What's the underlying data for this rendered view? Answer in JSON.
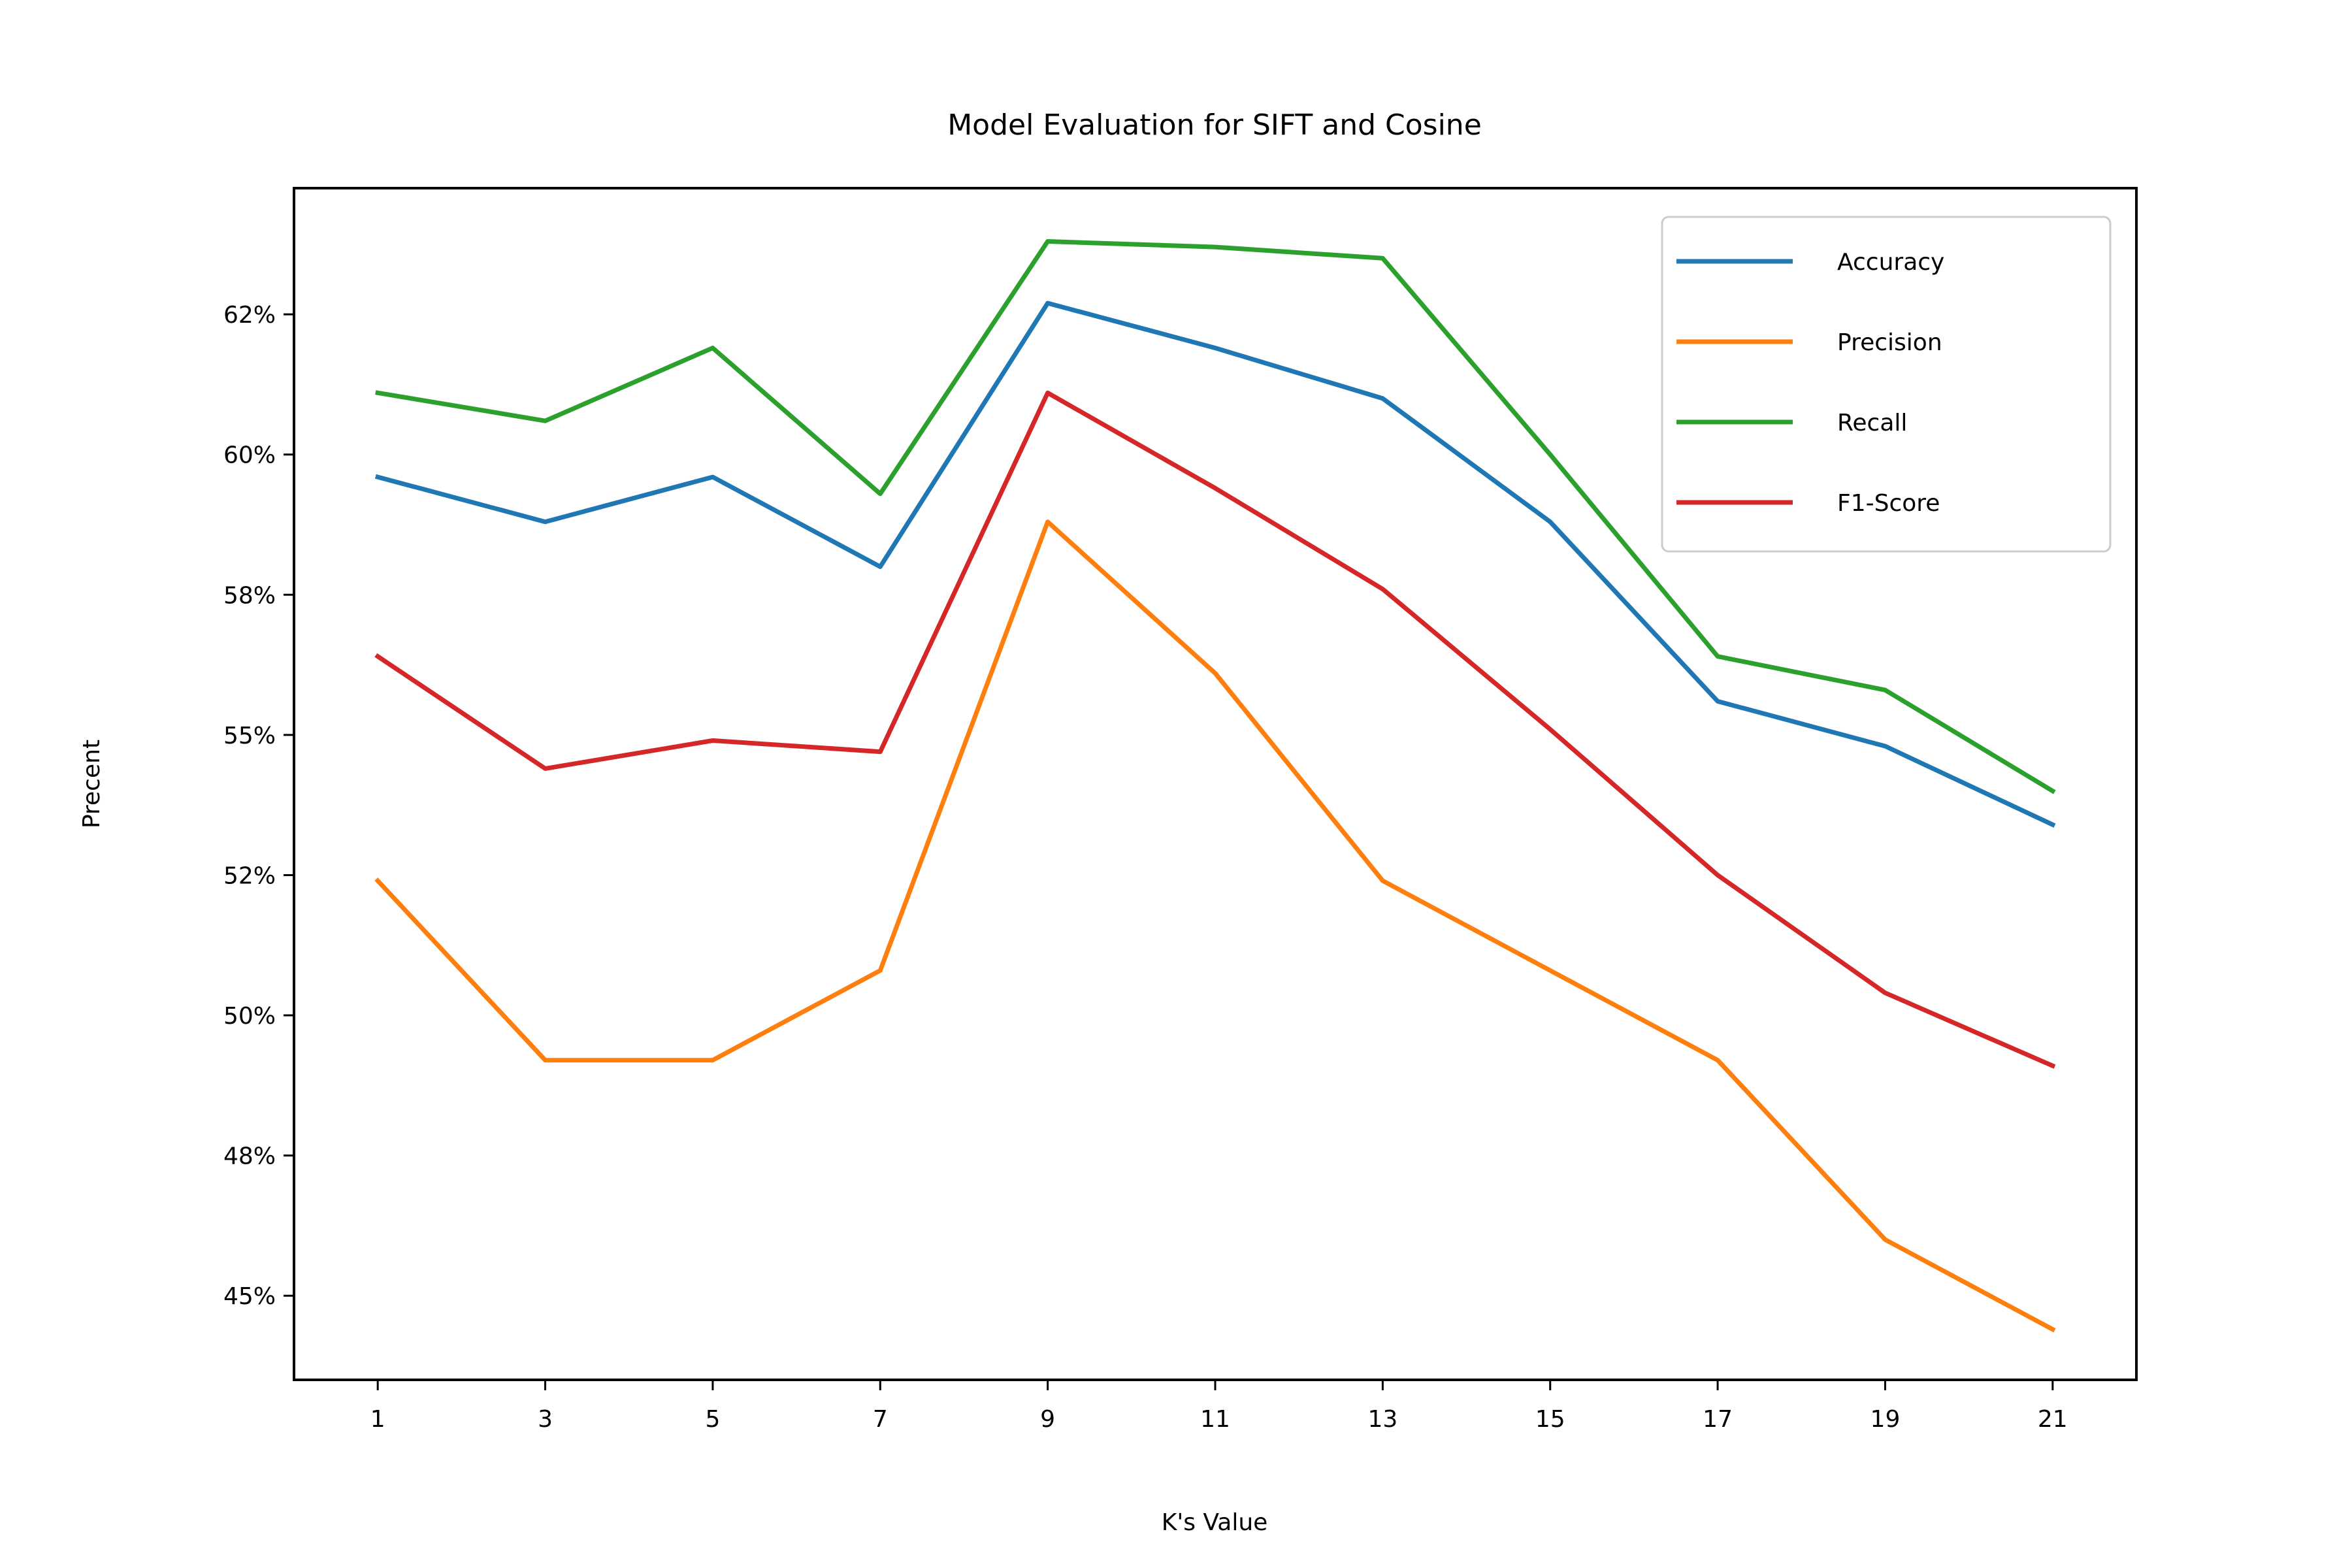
{
  "chart_data": {
    "type": "line",
    "title": "Model Evaluation for SIFT and Cosine",
    "xlabel": "K's Value",
    "ylabel": "Precent",
    "x": [
      1,
      3,
      5,
      7,
      9,
      11,
      13,
      15,
      17,
      19,
      21
    ],
    "xticks": [
      "1",
      "3",
      "5",
      "7",
      "9",
      "11",
      "13",
      "15",
      "17",
      "19",
      "21"
    ],
    "yticks": [
      {
        "value": 45,
        "label": "45%"
      },
      {
        "value": 47.5,
        "label": "48%"
      },
      {
        "value": 50,
        "label": "50%"
      },
      {
        "value": 52.5,
        "label": "52%"
      },
      {
        "value": 55,
        "label": "55%"
      },
      {
        "value": 57.5,
        "label": "58%"
      },
      {
        "value": 60,
        "label": "60%"
      },
      {
        "value": 62.5,
        "label": "62%"
      }
    ],
    "xlim": [
      0,
      22
    ],
    "ylim": [
      43.5,
      64.75
    ],
    "grid": false,
    "legend_position": "top-right",
    "series": [
      {
        "name": "Accuracy",
        "color": "#1f77b4",
        "values": [
          59.6,
          58.8,
          59.6,
          58.0,
          62.7,
          61.9,
          61.0,
          58.8,
          55.6,
          54.8,
          53.4
        ]
      },
      {
        "name": "Precision",
        "color": "#ff7f0e",
        "values": [
          52.4,
          49.2,
          49.2,
          50.8,
          58.8,
          56.1,
          52.4,
          50.8,
          49.2,
          46.0,
          44.4
        ]
      },
      {
        "name": "Recall",
        "color": "#2ca02c",
        "values": [
          61.1,
          60.6,
          61.9,
          59.3,
          63.8,
          63.7,
          63.5,
          60.0,
          56.4,
          55.8,
          54.0
        ]
      },
      {
        "name": "F1-Score",
        "color": "#d62728",
        "values": [
          56.4,
          54.4,
          54.9,
          54.7,
          61.1,
          59.4,
          57.6,
          55.1,
          52.5,
          50.4,
          49.1
        ]
      }
    ]
  }
}
